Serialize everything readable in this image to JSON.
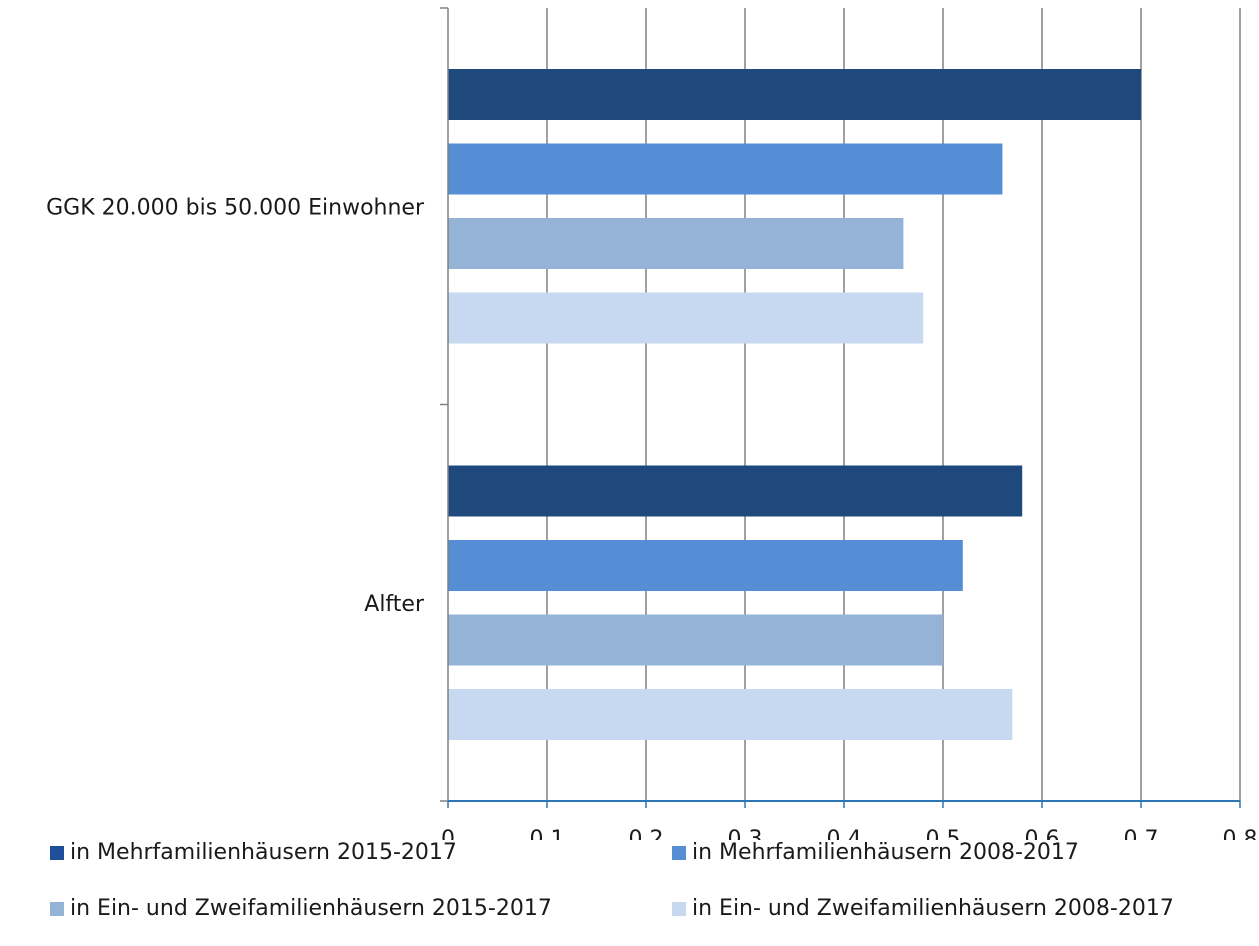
{
  "chart_data": {
    "type": "bar",
    "orientation": "horizontal",
    "categories": [
      "GGK 20.000 bis 50.000 Einwohner",
      "Alfter"
    ],
    "series": [
      {
        "name": "in Mehrfamilienhäusern 2015-2017",
        "color": "#1f497d",
        "values": [
          0.7,
          0.58
        ]
      },
      {
        "name": "in Mehrfamilienhäusern 2008-2017",
        "color": "#558ed5",
        "values": [
          0.56,
          0.52
        ]
      },
      {
        "name": "in Ein- und Zweifamilienhäusern 2015-2017",
        "color": "#95b3d7",
        "values": [
          0.46,
          0.5
        ]
      },
      {
        "name": "in Ein- und Zweifamilienhäusern 2008-2017",
        "color": "#c6d9f1",
        "values": [
          0.48,
          0.57
        ]
      }
    ],
    "xlim": [
      0,
      0.8
    ],
    "x_ticks": [
      "0",
      "0,1",
      "0,2",
      "0,3",
      "0,4",
      "0,5",
      "0,6",
      "0,7",
      "0,8"
    ],
    "grid": true,
    "legend_position": "bottom",
    "title": "",
    "xlabel": "",
    "ylabel": ""
  },
  "legend": {
    "items": [
      {
        "label": "in Mehrfamilienhäusern 2015-2017",
        "color": "#1f4e9a"
      },
      {
        "label": "in Mehrfamilienhäusern 2008-2017",
        "color": "#558ed5"
      },
      {
        "label": "in Ein- und Zweifamilienhäusern 2015-2017",
        "color": "#95b3d7"
      },
      {
        "label": "in Ein- und Zweifamilienhäusern 2008-2017",
        "color": "#c6d9f1"
      }
    ]
  }
}
